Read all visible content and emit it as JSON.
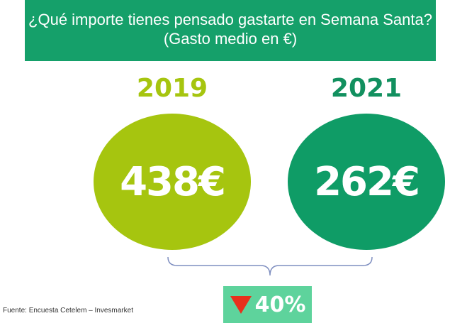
{
  "header": {
    "title_line1": "¿Qué importe tienes pensado gastarte en Semana Santa?",
    "title_line2": "(Gasto medio en €)"
  },
  "left": {
    "year": "2019",
    "amount": "438€",
    "color": "#a6c50f"
  },
  "right": {
    "year": "2021",
    "amount": "262€",
    "color": "#0f9c66"
  },
  "change": {
    "value": "40%",
    "icon": "down-triangle-icon",
    "icon_color": "#e8301c",
    "box_color": "#5ed39c"
  },
  "footer": {
    "source": "Fuente: Encuesta Cetelem – Invesmarket"
  }
}
